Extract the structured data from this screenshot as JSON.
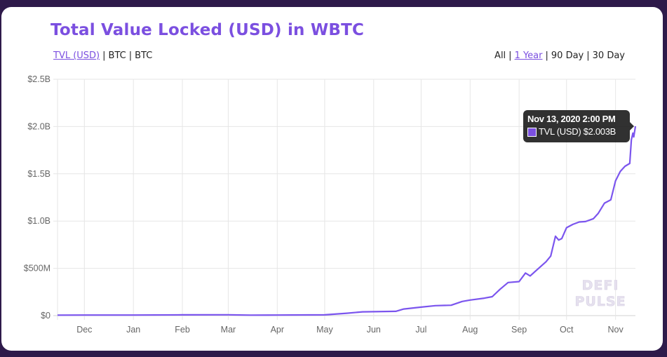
{
  "page": {
    "title": "Total Value Locked (USD) in WBTC",
    "metric_tabs": [
      {
        "label": "TVL (USD)",
        "active": true
      },
      {
        "label": "BTC",
        "active": false
      },
      {
        "label": "BTC",
        "active": false
      }
    ],
    "range_tabs": [
      {
        "label": "All",
        "active": false
      },
      {
        "label": "1 Year",
        "active": true
      },
      {
        "label": "90 Day",
        "active": false
      },
      {
        "label": "30 Day",
        "active": false
      }
    ],
    "separator": "|",
    "watermark": [
      "DEFI",
      "PULSE"
    ],
    "colors": {
      "accent": "#7b4fe0",
      "line": "#7b55ee",
      "background": "#2e1a4a",
      "grid": "#e6e6e6"
    }
  },
  "tooltip": {
    "date": "Nov 13, 2020 2:00 PM",
    "series": "TVL (USD)",
    "value": "$2.003B"
  },
  "chart_data": {
    "type": "line",
    "title": "Total Value Locked (USD) in WBTC",
    "xlabel": "",
    "ylabel": "TVL (USD)",
    "ylim": [
      0,
      2500000000
    ],
    "y_ticks": [
      "$0",
      "$500M",
      "$1.0B",
      "$1.5B",
      "$2.0B",
      "$2.5B"
    ],
    "y_tick_values": [
      0,
      500000000,
      1000000000,
      1500000000,
      2000000000,
      2500000000
    ],
    "x_ticks": [
      "Dec",
      "Jan",
      "Feb",
      "Mar",
      "Apr",
      "May",
      "Jun",
      "Jul",
      "Aug",
      "Sep",
      "Oct",
      "Nov"
    ],
    "x_range": [
      "2019-11-14",
      "2020-11-13"
    ],
    "grid": true,
    "legend": "none (series shown in tooltip)",
    "series": [
      {
        "name": "TVL (USD)",
        "points": [
          {
            "date": "2019-11-14",
            "value": 5000000
          },
          {
            "date": "2019-12-01",
            "value": 6000000
          },
          {
            "date": "2020-01-01",
            "value": 6000000
          },
          {
            "date": "2020-02-01",
            "value": 8000000
          },
          {
            "date": "2020-03-01",
            "value": 9000000
          },
          {
            "date": "2020-03-15",
            "value": 5000000
          },
          {
            "date": "2020-04-01",
            "value": 6000000
          },
          {
            "date": "2020-05-01",
            "value": 8000000
          },
          {
            "date": "2020-05-15",
            "value": 25000000
          },
          {
            "date": "2020-05-25",
            "value": 40000000
          },
          {
            "date": "2020-06-15",
            "value": 45000000
          },
          {
            "date": "2020-06-20",
            "value": 70000000
          },
          {
            "date": "2020-07-01",
            "value": 90000000
          },
          {
            "date": "2020-07-10",
            "value": 105000000
          },
          {
            "date": "2020-07-20",
            "value": 110000000
          },
          {
            "date": "2020-07-27",
            "value": 150000000
          },
          {
            "date": "2020-08-01",
            "value": 165000000
          },
          {
            "date": "2020-08-10",
            "value": 185000000
          },
          {
            "date": "2020-08-15",
            "value": 200000000
          },
          {
            "date": "2020-08-20",
            "value": 280000000
          },
          {
            "date": "2020-08-25",
            "value": 350000000
          },
          {
            "date": "2020-09-01",
            "value": 360000000
          },
          {
            "date": "2020-09-05",
            "value": 450000000
          },
          {
            "date": "2020-09-08",
            "value": 420000000
          },
          {
            "date": "2020-09-12",
            "value": 480000000
          },
          {
            "date": "2020-09-18",
            "value": 570000000
          },
          {
            "date": "2020-09-21",
            "value": 630000000
          },
          {
            "date": "2020-09-24",
            "value": 840000000
          },
          {
            "date": "2020-09-26",
            "value": 800000000
          },
          {
            "date": "2020-09-28",
            "value": 815000000
          },
          {
            "date": "2020-10-01",
            "value": 930000000
          },
          {
            "date": "2020-10-05",
            "value": 965000000
          },
          {
            "date": "2020-10-09",
            "value": 990000000
          },
          {
            "date": "2020-10-13",
            "value": 995000000
          },
          {
            "date": "2020-10-18",
            "value": 1025000000
          },
          {
            "date": "2020-10-21",
            "value": 1080000000
          },
          {
            "date": "2020-10-25",
            "value": 1190000000
          },
          {
            "date": "2020-10-29",
            "value": 1225000000
          },
          {
            "date": "2020-11-01",
            "value": 1425000000
          },
          {
            "date": "2020-11-04",
            "value": 1525000000
          },
          {
            "date": "2020-11-07",
            "value": 1580000000
          },
          {
            "date": "2020-11-10",
            "value": 1610000000
          },
          {
            "date": "2020-11-11",
            "value": 1860000000
          },
          {
            "date": "2020-11-12",
            "value": 1930000000
          },
          {
            "date": "2020-11-12T12:00",
            "value": 1890000000
          },
          {
            "date": "2020-11-13T14:00",
            "value": 2003000000
          }
        ]
      }
    ],
    "annotations": [
      "Tooltip: Nov 13, 2020 2:00 PM — TVL (USD) $2.003B",
      "Watermark: DEFI PULSE"
    ]
  }
}
